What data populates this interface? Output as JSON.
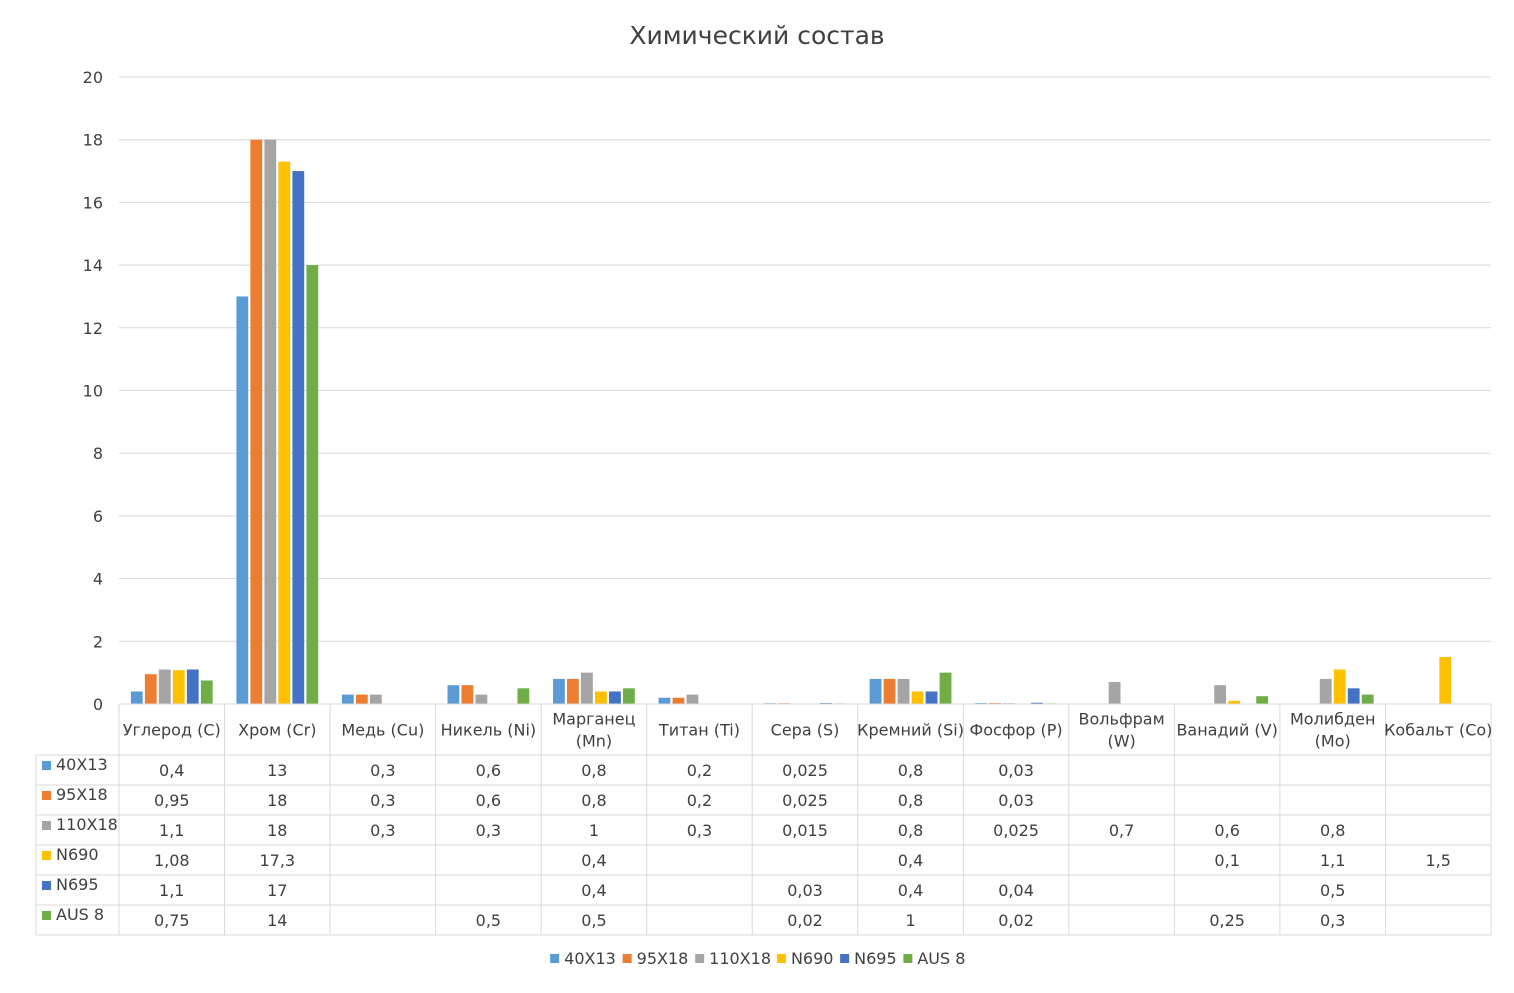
{
  "chart_data": {
    "type": "bar",
    "title": "Химический состав",
    "ylim": [
      0,
      20
    ],
    "yticks": [
      "0",
      "2",
      "4",
      "6",
      "8",
      "10",
      "12",
      "14",
      "16",
      "18",
      "20"
    ],
    "grid": true,
    "legend_position": "bottom",
    "data_table": true,
    "categories": [
      "Углерод (C)",
      "Хром (Cr)",
      "Медь (Cu)",
      "Никель (Ni)",
      "Марганец (Mn)",
      "Титан (Ti)",
      "Сера (S)",
      "Кремний (Si)",
      "Фосфор (P)",
      "Вольфрам (W)",
      "Ванадий (V)",
      "Молибден (Mo)",
      "Кобальт (Co)"
    ],
    "category_lines": [
      [
        "Углерод (C)"
      ],
      [
        "Хром (Cr)"
      ],
      [
        "Медь (Cu)"
      ],
      [
        "Никель (Ni)"
      ],
      [
        "Марганец",
        "(Mn)"
      ],
      [
        "Титан (Ti)"
      ],
      [
        "Сера (S)"
      ],
      [
        "Кремний (Si)"
      ],
      [
        "Фосфор (P)"
      ],
      [
        "Вольфрам",
        "(W)"
      ],
      [
        "Ванадий (V)"
      ],
      [
        "Молибден",
        "(Mo)"
      ],
      [
        "Кобальт (Co)"
      ]
    ],
    "series": [
      {
        "name": "40Х13",
        "color": "#5B9BD5",
        "values": [
          0.4,
          13,
          0.3,
          0.6,
          0.8,
          0.2,
          0.025,
          0.8,
          0.03,
          null,
          null,
          null,
          null
        ],
        "labels": [
          "0,4",
          "13",
          "0,3",
          "0,6",
          "0,8",
          "0,2",
          "0,025",
          "0,8",
          "0,03",
          "",
          "",
          "",
          ""
        ]
      },
      {
        "name": "95Х18",
        "color": "#ED7D31",
        "values": [
          0.95,
          18,
          0.3,
          0.6,
          0.8,
          0.2,
          0.025,
          0.8,
          0.03,
          null,
          null,
          null,
          null
        ],
        "labels": [
          "0,95",
          "18",
          "0,3",
          "0,6",
          "0,8",
          "0,2",
          "0,025",
          "0,8",
          "0,03",
          "",
          "",
          "",
          ""
        ]
      },
      {
        "name": "110Х18",
        "color": "#A5A5A5",
        "values": [
          1.1,
          18,
          0.3,
          0.3,
          1,
          0.3,
          0.015,
          0.8,
          0.025,
          0.7,
          0.6,
          0.8,
          null
        ],
        "labels": [
          "1,1",
          "18",
          "0,3",
          "0,3",
          "1",
          "0,3",
          "0,015",
          "0,8",
          "0,025",
          "0,7",
          "0,6",
          "0,8",
          ""
        ]
      },
      {
        "name": "N690",
        "color": "#FFC000",
        "values": [
          1.08,
          17.3,
          null,
          null,
          0.4,
          null,
          null,
          0.4,
          null,
          null,
          0.1,
          1.1,
          1.5
        ],
        "labels": [
          "1,08",
          "17,3",
          "",
          "",
          "0,4",
          "",
          "",
          "0,4",
          "",
          "",
          "0,1",
          "1,1",
          "1,5"
        ]
      },
      {
        "name": "N695",
        "color": "#4472C4",
        "values": [
          1.1,
          17,
          null,
          null,
          0.4,
          null,
          0.03,
          0.4,
          0.04,
          null,
          null,
          0.5,
          null
        ],
        "labels": [
          "1,1",
          "17",
          "",
          "",
          "0,4",
          "",
          "0,03",
          "0,4",
          "0,04",
          "",
          "",
          "0,5",
          ""
        ]
      },
      {
        "name": "AUS 8",
        "color": "#70AD47",
        "values": [
          0.75,
          14,
          null,
          0.5,
          0.5,
          null,
          0.02,
          1,
          0.02,
          null,
          0.25,
          0.3,
          null
        ],
        "labels": [
          "0,75",
          "14",
          "",
          "0,5",
          "0,5",
          "",
          "0,02",
          "1",
          "0,02",
          "",
          "0,25",
          "0,3",
          ""
        ]
      }
    ]
  }
}
